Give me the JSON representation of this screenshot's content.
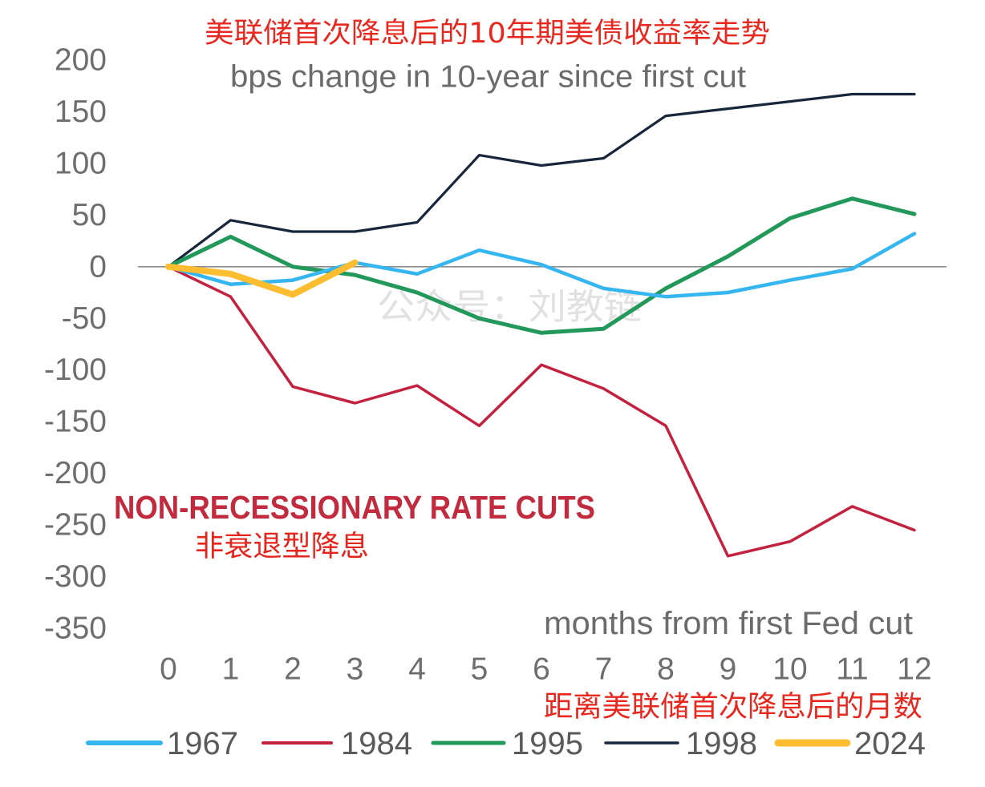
{
  "chart_data": {
    "type": "line",
    "title": "美联储首次降息后的10年期美债收益率走势",
    "title_color": "#e8271e",
    "subtitle": "bps change in 10-year since first cut",
    "xlabel": "months from first Fed cut",
    "xlabel_cn": "距离美联储首次降息后的月数",
    "xlabel_cn_color": "#e8271e",
    "xlim": [
      0,
      12
    ],
    "ylim": [
      -350,
      200
    ],
    "xticks": [
      0,
      1,
      2,
      3,
      4,
      5,
      6,
      7,
      8,
      9,
      10,
      11,
      12
    ],
    "yticks": [
      200,
      150,
      100,
      50,
      0,
      -50,
      -100,
      -150,
      -200,
      -250,
      -300,
      -350
    ],
    "grid": false,
    "reference_line_y": 0,
    "reference_line_color": "#8c8c8c",
    "legend_position": "bottom",
    "series": [
      {
        "name": "1967",
        "color": "#35b6f0",
        "x": [
          0,
          1,
          2,
          3,
          4,
          5,
          6,
          7,
          8,
          9,
          10,
          11,
          12
        ],
        "values": [
          0,
          -17,
          -13,
          4,
          -7,
          16,
          2,
          -21,
          -29,
          -25,
          -13,
          -2,
          32
        ]
      },
      {
        "name": "1984",
        "color": "#c4213f",
        "x": [
          0,
          1,
          2,
          3,
          4,
          5,
          6,
          7,
          8,
          9,
          10,
          11,
          12
        ],
        "values": [
          0,
          -29,
          -116,
          -132,
          -115,
          -154,
          -95,
          -118,
          -154,
          -280,
          -266,
          -232,
          -255
        ]
      },
      {
        "name": "1995",
        "color": "#22995a",
        "x": [
          0,
          1,
          2,
          3,
          4,
          5,
          6,
          7,
          8,
          9,
          10,
          11,
          12
        ],
        "values": [
          0,
          29,
          0,
          -8,
          -25,
          -50,
          -64,
          -60,
          -21,
          10,
          47,
          66,
          51
        ]
      },
      {
        "name": "1998",
        "color": "#17263b",
        "x": [
          0,
          1,
          2,
          3,
          4,
          5,
          6,
          7,
          8,
          9,
          10,
          11,
          12
        ],
        "values": [
          0,
          45,
          34,
          34,
          43,
          108,
          98,
          105,
          146,
          153,
          160,
          167,
          167
        ]
      },
      {
        "name": "2024",
        "color": "#fcbd31",
        "x": [
          0,
          1,
          2,
          3
        ],
        "values": [
          0,
          -7,
          -27,
          4
        ]
      }
    ],
    "annotations": [
      {
        "text": "NON-RECESSIONARY RATE CUTS",
        "color": "#c22a3d"
      },
      {
        "text": "非衰退型降息",
        "color": "#e5241c"
      }
    ]
  },
  "watermark": "公众号：刘教链"
}
